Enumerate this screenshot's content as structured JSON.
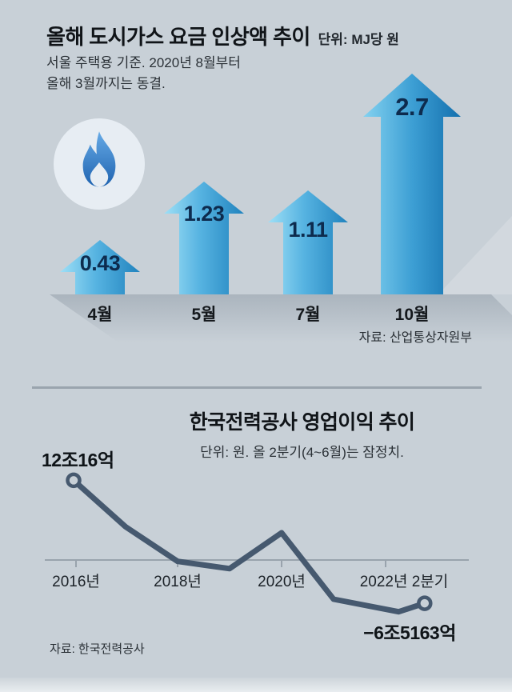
{
  "page": {
    "background_color": "#c8d0d7"
  },
  "chart_data": [
    {
      "type": "bar",
      "bar_style": "upward-arrow",
      "title": "올해 도시가스 요금 인상액 추이",
      "unit": "단위: MJ당 원",
      "note_lines": [
        "서울 주택용 기준. 2020년 8월부터",
        "올해 3월까지는 동결."
      ],
      "icon": "gas-flame",
      "categories": [
        "4월",
        "5월",
        "7월",
        "10월"
      ],
      "values": [
        0.43,
        1.23,
        1.11,
        2.7
      ],
      "source": "자료: 산업통상자원부",
      "colors": {
        "arrow_light": "#9edff6",
        "arrow_dark": "#2183be",
        "big_arrow_dark": "#1470ae",
        "value_text": "#0d2b4e"
      }
    },
    {
      "type": "line",
      "title": "한국전력공사 영업이익 추이",
      "subtitle": "단위: 원. 올 2분기(4~6월)는 잠정치.",
      "unit": "조 원",
      "x_tick_labels": [
        "2016년",
        "2018년",
        "2020년",
        "2022년 2분기"
      ],
      "points": [
        {
          "t": 2016,
          "label": "2016년",
          "value": 12.0016
        },
        {
          "t": 2017,
          "value": 5.0
        },
        {
          "t": 2018,
          "label": "2018년",
          "value": -0.2
        },
        {
          "t": 2019,
          "value": -1.3
        },
        {
          "t": 2020,
          "label": "2020년",
          "value": 4.1
        },
        {
          "t": 2021,
          "value": -5.9
        },
        {
          "t": 2022.25,
          "value": -7.8
        },
        {
          "t": 2022.75,
          "label": "2022년 2분기",
          "value": -6.5163
        }
      ],
      "ylim": [
        -9,
        13
      ],
      "zero_line": true,
      "grid": false,
      "markers": "open circles at first and last points",
      "first_point_label": "12조16억",
      "last_point_label": "−6조5163억",
      "source": "자료: 한국전력공사",
      "line_color": "#46596f"
    }
  ]
}
